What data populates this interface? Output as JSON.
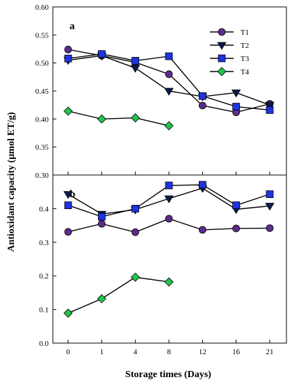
{
  "chart_data": [
    {
      "type": "line",
      "panel_label": "a",
      "categories": [
        "0",
        "1",
        "4",
        "8",
        "12",
        "16",
        "21"
      ],
      "ylim": [
        0.3,
        0.6
      ],
      "yticks": [
        "0.30",
        "0.35",
        "0.40",
        "0.45",
        "0.50",
        "0.55",
        "0.60"
      ],
      "legend": "top-right",
      "grid": false,
      "series": [
        {
          "name": "T1",
          "color": "#5b2d8a",
          "marker": "circle",
          "values": [
            0.524,
            0.513,
            0.501,
            0.48,
            0.424,
            0.412,
            0.427
          ]
        },
        {
          "name": "T2",
          "color": "#0a1a4e",
          "marker": "triangle-down",
          "values": [
            0.505,
            0.513,
            0.491,
            0.45,
            0.44,
            0.447,
            0.425
          ]
        },
        {
          "name": "T3",
          "color": "#1f33e0",
          "marker": "square",
          "values": [
            0.508,
            0.516,
            0.504,
            0.512,
            0.441,
            0.422,
            0.416
          ]
        },
        {
          "name": "T4",
          "color": "#22c44a",
          "marker": "diamond",
          "values": [
            0.414,
            0.4,
            0.402,
            0.388,
            null,
            null,
            null
          ]
        }
      ]
    },
    {
      "type": "line",
      "panel_label": "b",
      "categories": [
        "0",
        "1",
        "4",
        "8",
        "12",
        "16",
        "21"
      ],
      "xlabel": "Storage times (Days)",
      "ylim": [
        0.0,
        0.5
      ],
      "yticks": [
        "0.0",
        "0.1",
        "0.2",
        "0.3",
        "0.4"
      ],
      "grid": false,
      "series": [
        {
          "name": "T1",
          "color": "#5b2d8a",
          "marker": "circle",
          "values": [
            0.331,
            0.355,
            0.33,
            0.37,
            0.337,
            0.341,
            0.342
          ]
        },
        {
          "name": "T2",
          "color": "#0a1a4e",
          "marker": "triangle-down",
          "values": [
            0.443,
            0.384,
            0.397,
            0.43,
            0.461,
            0.398,
            0.408
          ]
        },
        {
          "name": "T3",
          "color": "#1f33e0",
          "marker": "square",
          "values": [
            0.41,
            0.376,
            0.4,
            0.469,
            0.471,
            0.41,
            0.443
          ]
        },
        {
          "name": "T4",
          "color": "#22c44a",
          "marker": "diamond",
          "values": [
            0.089,
            0.132,
            0.196,
            0.182,
            null,
            null,
            null
          ]
        }
      ]
    }
  ],
  "ylabel": "Antioxidant capacity (µmol ET/g)"
}
